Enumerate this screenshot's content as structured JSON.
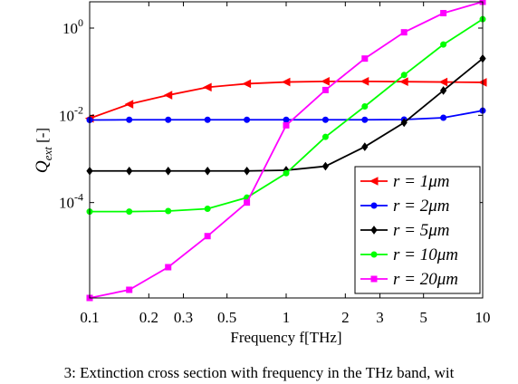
{
  "caption": "3: Extinction cross section with frequency in the THz band, wit",
  "chart_data": {
    "type": "line",
    "xscale": "log",
    "yscale": "log",
    "xlim": [
      0.1,
      10
    ],
    "ylim": [
      6.5e-07,
      4
    ],
    "xlabel": "Frequency f[THz]",
    "ylabel": "Q_ext [-]",
    "x_ticks": [
      {
        "value": 0.1,
        "label": "0.1"
      },
      {
        "value": 0.2,
        "label": "0.2"
      },
      {
        "value": 0.3,
        "label": "0.3"
      },
      {
        "value": 0.5,
        "label": "0.5"
      },
      {
        "value": 1,
        "label": "1"
      },
      {
        "value": 2,
        "label": "2"
      },
      {
        "value": 3,
        "label": "3"
      },
      {
        "value": 5,
        "label": "5"
      },
      {
        "value": 10,
        "label": "10"
      }
    ],
    "y_ticks": [
      {
        "value": 0.0001,
        "base": "10",
        "exp": "-4"
      },
      {
        "value": 0.01,
        "base": "10",
        "exp": "-2"
      },
      {
        "value": 1,
        "base": "10",
        "exp": "0"
      }
    ],
    "grid": false,
    "legend_position": "bottom-right",
    "x": [
      0.1,
      0.159,
      0.251,
      0.398,
      0.631,
      1,
      1.585,
      2.512,
      3.981,
      6.31,
      10
    ],
    "series": [
      {
        "name": "r = 1μm",
        "color": "#ff0000",
        "marker": "triangle-left",
        "values": [
          0.0085,
          0.018,
          0.029,
          0.044,
          0.053,
          0.058,
          0.06,
          0.06,
          0.059,
          0.058,
          0.057
        ]
      },
      {
        "name": "r = 2μm",
        "color": "#0000ff",
        "marker": "circle",
        "values": [
          0.0078,
          0.0079,
          0.0079,
          0.0079,
          0.0079,
          0.0079,
          0.0079,
          0.0079,
          0.008,
          0.0088,
          0.0128
        ]
      },
      {
        "name": "r = 5μm",
        "color": "#000000",
        "marker": "diamond",
        "values": [
          0.00053,
          0.00053,
          0.00053,
          0.00053,
          0.00053,
          0.00055,
          0.00068,
          0.0019,
          0.0068,
          0.037,
          0.2
        ]
      },
      {
        "name": "r = 10μm",
        "color": "#00ff00",
        "marker": "circle",
        "values": [
          6.2e-05,
          6.2e-05,
          6.4e-05,
          7.2e-05,
          0.00013,
          0.00047,
          0.0032,
          0.016,
          0.084,
          0.42,
          1.6
        ]
      },
      {
        "name": "r = 20μm",
        "color": "#ff00ff",
        "marker": "square",
        "values": [
          6.5e-07,
          1e-06,
          3.3e-06,
          1.7e-05,
          0.0001,
          0.0059,
          0.038,
          0.2,
          0.8,
          2.2,
          4
        ]
      }
    ]
  }
}
